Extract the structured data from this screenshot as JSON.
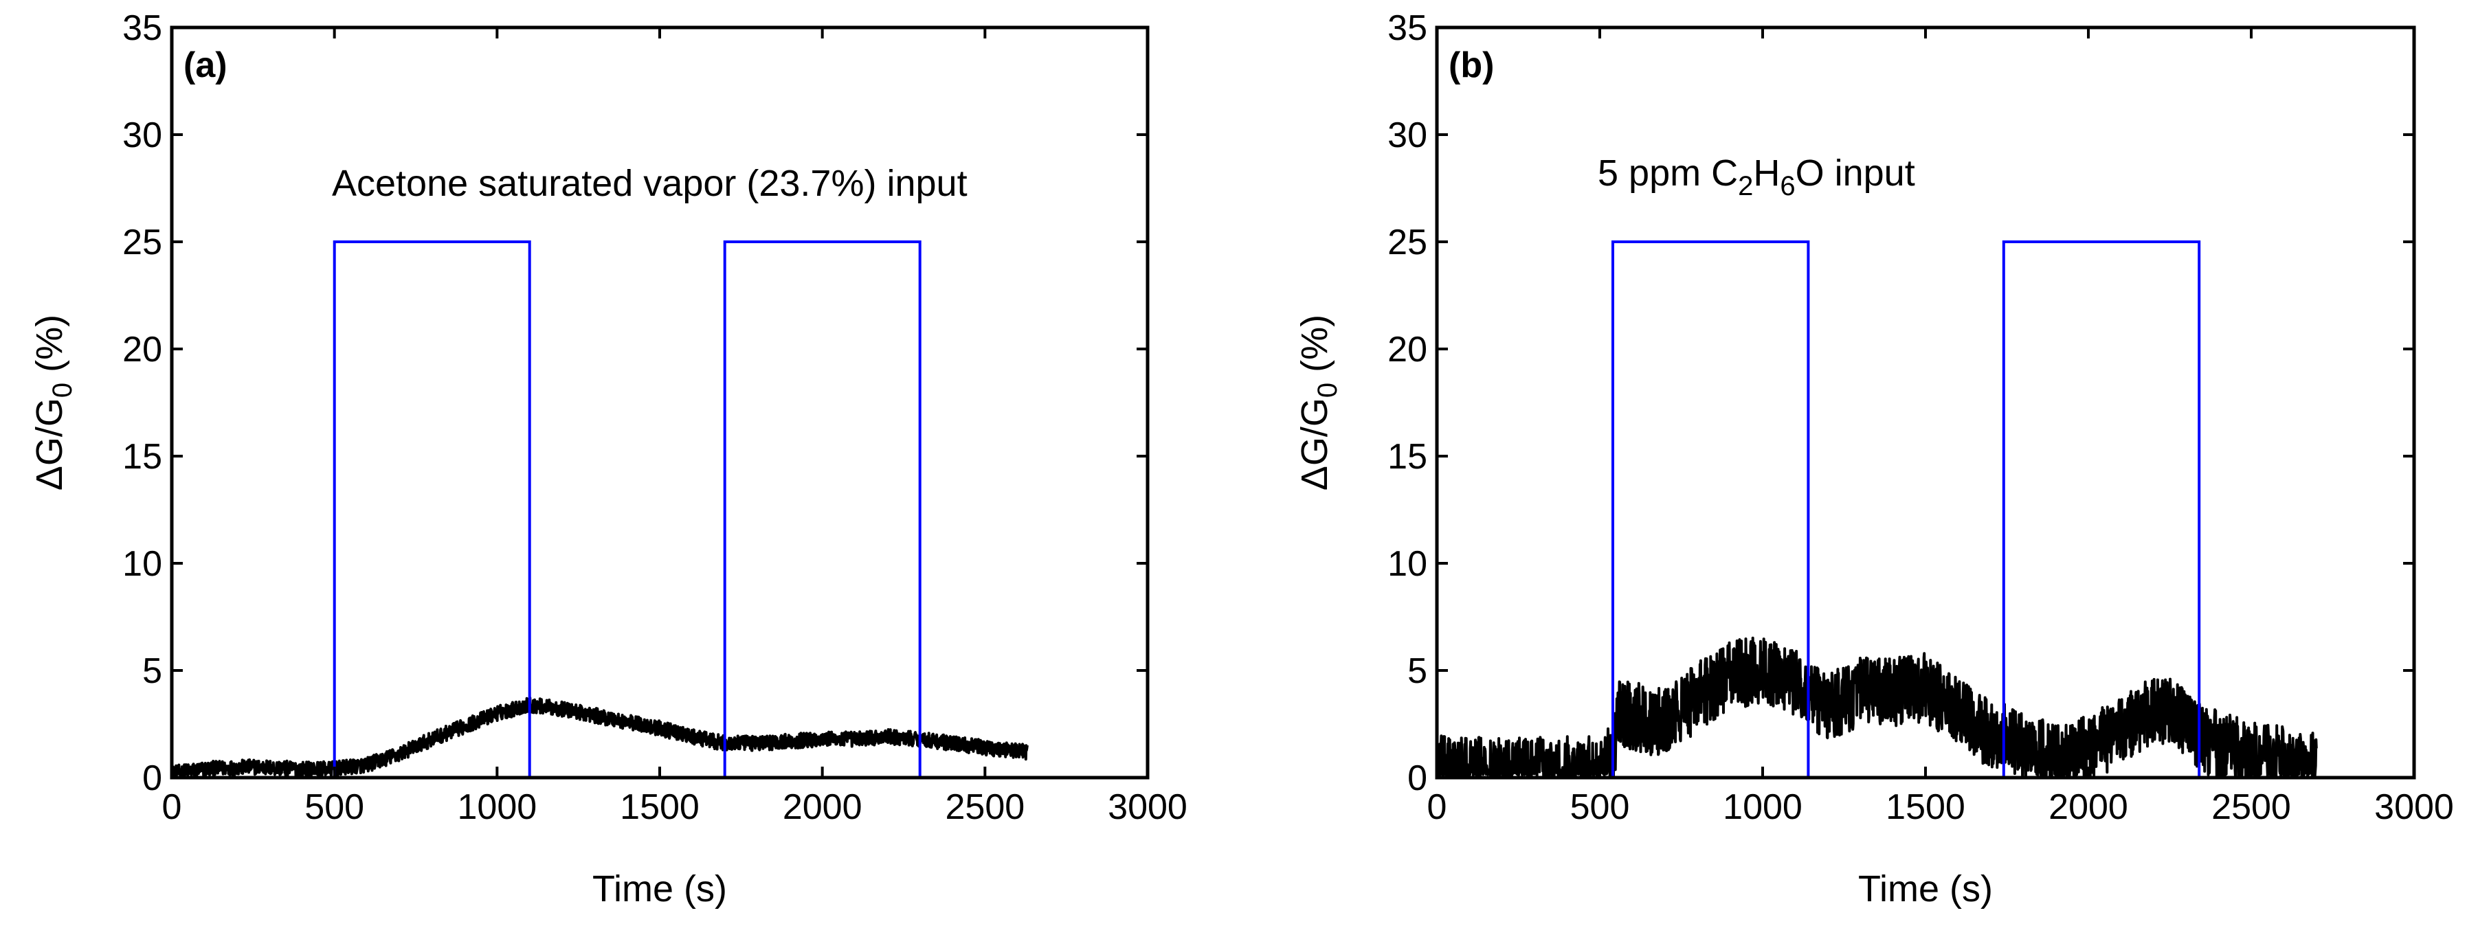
{
  "colors": {
    "axes": "#000000",
    "signal": "#000000",
    "pulse": "#0000ff"
  },
  "chart_data": [
    {
      "type": "line",
      "panel_label": "(a)",
      "title": "",
      "annotation": "Acetone saturated vapor (23.7%) input",
      "xlabel": "Time (s)",
      "ylabel": {
        "prefix": "ΔG/G",
        "sub": "0",
        "suffix": " (%)"
      },
      "xlim": [
        0,
        3000
      ],
      "ylim": [
        0,
        35
      ],
      "x_ticks": [
        "0",
        "500",
        "1000",
        "1500",
        "2000",
        "2500",
        "3000"
      ],
      "y_ticks": [
        "0",
        "5",
        "10",
        "15",
        "20",
        "25",
        "30",
        "35"
      ],
      "grid": false,
      "series": [
        {
          "style": "noisy-line",
          "noise": 0.35,
          "x": [
            0,
            100,
            250,
            400,
            500,
            600,
            700,
            800,
            900,
            1000,
            1100,
            1200,
            1300,
            1400,
            1500,
            1600,
            1700,
            1800,
            1900,
            2000,
            2100,
            2200,
            2300,
            2400,
            2500,
            2630
          ],
          "y": [
            0.2,
            0.4,
            0.5,
            0.4,
            0.4,
            0.6,
            1.1,
            1.8,
            2.4,
            3.0,
            3.4,
            3.2,
            2.9,
            2.6,
            2.3,
            1.9,
            1.6,
            1.6,
            1.7,
            1.8,
            1.8,
            1.9,
            1.8,
            1.6,
            1.4,
            1.2
          ]
        },
        {
          "style": "pulse",
          "x": [
            0,
            500,
            500,
            1100,
            1100,
            1700,
            1700,
            2300,
            2300
          ],
          "y": [
            0,
            0,
            25,
            25,
            0,
            0,
            25,
            25,
            0
          ]
        }
      ]
    },
    {
      "type": "line",
      "panel_label": "(b)",
      "title": "",
      "annotation": {
        "prefix": "5 ppm C",
        "sub1": "2",
        "mid": "H",
        "sub2": "6",
        "suffix": "O input"
      },
      "xlabel": "Time (s)",
      "ylabel": {
        "prefix": "ΔG/G",
        "sub": "0",
        "suffix": " (%)"
      },
      "xlim": [
        0,
        3000
      ],
      "ylim": [
        0,
        35
      ],
      "x_ticks": [
        "0",
        "500",
        "1000",
        "1500",
        "2000",
        "2500",
        "3000"
      ],
      "y_ticks": [
        "0",
        "5",
        "10",
        "15",
        "20",
        "25",
        "30",
        "35"
      ],
      "grid": false,
      "series": [
        {
          "style": "noisy-line",
          "noise": 1.6,
          "x": [
            0,
            100,
            200,
            300,
            400,
            500,
            540,
            560,
            620,
            700,
            800,
            900,
            1000,
            1080,
            1140,
            1200,
            1300,
            1400,
            1500,
            1600,
            1700,
            1740,
            1800,
            1900,
            2000,
            2100,
            2200,
            2260,
            2340,
            2400,
            2500,
            2600,
            2700
          ],
          "y": [
            0.4,
            0.3,
            0.3,
            0.3,
            0.4,
            0.3,
            1.0,
            3.0,
            2.8,
            2.5,
            3.8,
            4.8,
            5.0,
            4.6,
            4.0,
            3.3,
            4.0,
            4.0,
            4.2,
            3.0,
            2.0,
            2.0,
            1.4,
            0.9,
            1.3,
            2.2,
            3.2,
            3.0,
            1.9,
            1.5,
            1.0,
            0.8,
            0.5
          ]
        },
        {
          "style": "pulse",
          "x": [
            0,
            540,
            540,
            1140,
            1140,
            1740,
            1740,
            2340,
            2340
          ],
          "y": [
            0,
            0,
            25,
            25,
            0,
            0,
            25,
            25,
            0
          ]
        }
      ]
    }
  ]
}
